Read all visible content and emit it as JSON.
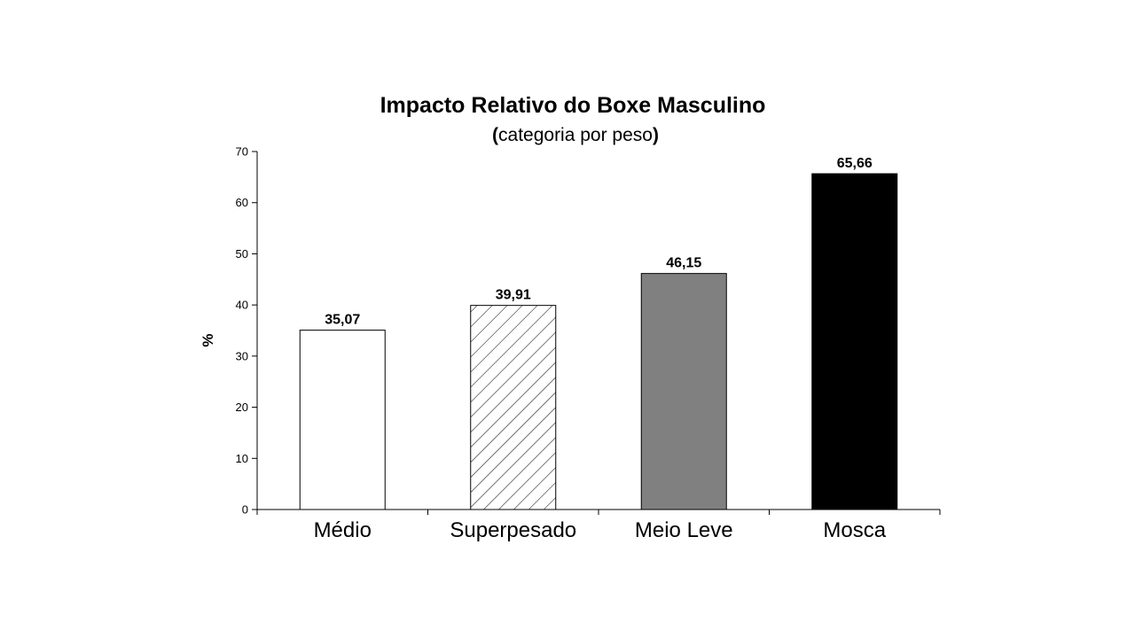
{
  "chart_data": {
    "type": "bar",
    "title": "Impacto Relativo do Boxe Masculino",
    "subtitle": {
      "open": "(",
      "text": "categoria por peso",
      "close": ")"
    },
    "ylabel": "%",
    "xlabel": "",
    "ylim": [
      0,
      70
    ],
    "yticks": [
      0,
      10,
      20,
      30,
      40,
      50,
      60,
      70
    ],
    "categories": [
      "Médio",
      "Superpesado",
      "Meio Leve",
      "Mosca"
    ],
    "values": [
      35.07,
      39.91,
      46.15,
      65.66
    ],
    "value_labels": [
      "35,07",
      "39,91",
      "46,15",
      "65,66"
    ],
    "bar_styles": [
      {
        "fill": "#ffffff",
        "pattern": "none"
      },
      {
        "fill": "#ffffff",
        "pattern": "diagonal-hatch"
      },
      {
        "fill": "#808080",
        "pattern": "none"
      },
      {
        "fill": "#000000",
        "pattern": "none"
      }
    ],
    "grid": false,
    "legend": "none"
  }
}
